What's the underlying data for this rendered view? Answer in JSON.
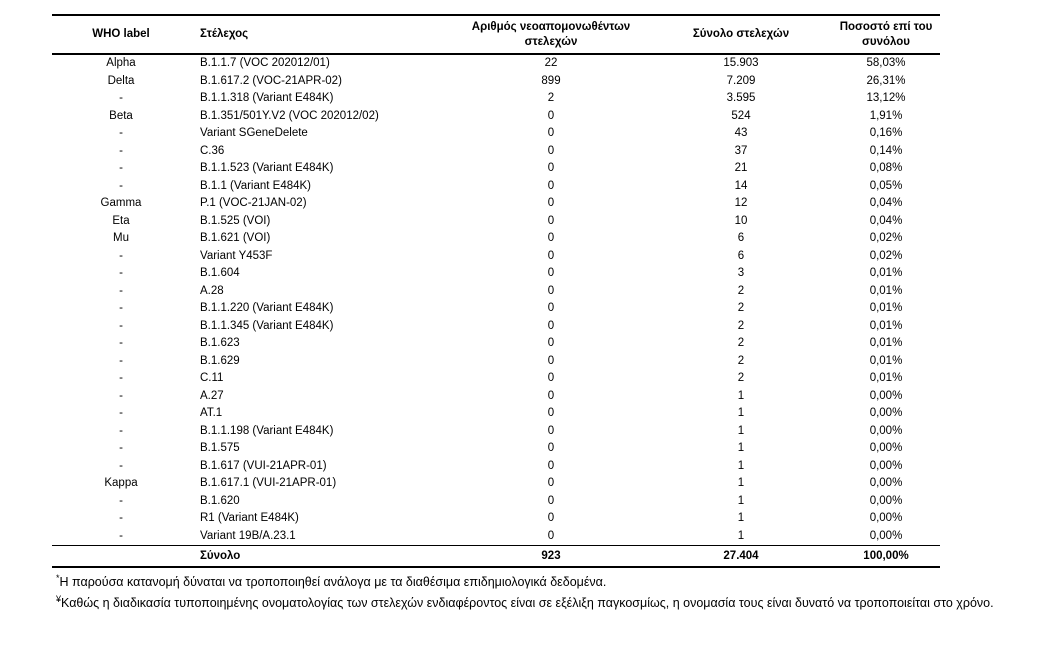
{
  "document": {
    "table": {
      "columns": [
        {
          "key": "who_label",
          "label": "WHO label"
        },
        {
          "key": "strain",
          "label": "Στέλεχος"
        },
        {
          "key": "new_isolates",
          "label": "Αριθμός νεοαπομονωθέντων στελεχών"
        },
        {
          "key": "total_strains",
          "label": "Σύνολο στελεχών"
        },
        {
          "key": "percent_of_total",
          "label": "Ποσοστό επί του συνόλου"
        }
      ],
      "rows": [
        [
          "Alpha",
          "B.1.1.7 (VOC 202012/01)",
          "22",
          "15.903",
          "58,03%"
        ],
        [
          "Delta",
          "B.1.617.2 (VOC-21APR-02)",
          "899",
          "7.209",
          "26,31%"
        ],
        [
          "-",
          "B.1.1.318 (Variant E484K)",
          "2",
          "3.595",
          "13,12%"
        ],
        [
          "Beta",
          "B.1.351/501Y.V2 (VOC 202012/02)",
          "0",
          "524",
          "1,91%"
        ],
        [
          "-",
          "Variant SGeneDelete",
          "0",
          "43",
          "0,16%"
        ],
        [
          "-",
          "C.36",
          "0",
          "37",
          "0,14%"
        ],
        [
          "-",
          "B.1.1.523 (Variant E484K)",
          "0",
          "21",
          "0,08%"
        ],
        [
          "-",
          "B.1.1 (Variant E484K)",
          "0",
          "14",
          "0,05%"
        ],
        [
          "Gamma",
          "P.1 (VOC-21JAN-02)",
          "0",
          "12",
          "0,04%"
        ],
        [
          "Eta",
          "B.1.525 (VOI)",
          "0",
          "10",
          "0,04%"
        ],
        [
          "Mu",
          "B.1.621 (VOI)",
          "0",
          "6",
          "0,02%"
        ],
        [
          "-",
          "Variant Y453F",
          "0",
          "6",
          "0,02%"
        ],
        [
          "-",
          "B.1.604",
          "0",
          "3",
          "0,01%"
        ],
        [
          "-",
          "A.28",
          "0",
          "2",
          "0,01%"
        ],
        [
          "-",
          "B.1.1.220 (Variant E484K)",
          "0",
          "2",
          "0,01%"
        ],
        [
          "-",
          "B.1.1.345 (Variant E484K)",
          "0",
          "2",
          "0,01%"
        ],
        [
          "-",
          "B.1.623",
          "0",
          "2",
          "0,01%"
        ],
        [
          "-",
          "B.1.629",
          "0",
          "2",
          "0,01%"
        ],
        [
          "-",
          "C.11",
          "0",
          "2",
          "0,01%"
        ],
        [
          "-",
          "A.27",
          "0",
          "1",
          "0,00%"
        ],
        [
          "-",
          "AT.1",
          "0",
          "1",
          "0,00%"
        ],
        [
          "-",
          "B.1.1.198 (Variant E484K)",
          "0",
          "1",
          "0,00%"
        ],
        [
          "-",
          "B.1.575",
          "0",
          "1",
          "0,00%"
        ],
        [
          "-",
          "B.1.617 (VUI-21APR-01)",
          "0",
          "1",
          "0,00%"
        ],
        [
          "Kappa",
          "B.1.617.1 (VUI-21APR-01)",
          "0",
          "1",
          "0,00%"
        ],
        [
          "-",
          "B.1.620",
          "0",
          "1",
          "0,00%"
        ],
        [
          "-",
          "R1 (Variant E484K)",
          "0",
          "1",
          "0,00%"
        ],
        [
          "-",
          "Variant 19B/A.23.1",
          "0",
          "1",
          "0,00%"
        ]
      ],
      "total_row": {
        "who_label": "",
        "label": "Σύνολο",
        "new_isolates": "923",
        "total_strains": "27.404",
        "percent_of_total": "100,00%"
      }
    },
    "footnotes": [
      {
        "marker": "*",
        "text": "Η παρούσα κατανομή δύναται να τροποποιηθεί ανάλογα με τα διαθέσιμα επιδημιολογικά δεδομένα."
      },
      {
        "marker": "¥",
        "text": "Καθώς η διαδικασία τυποποιημένης ονοματολογίας των στελεχών ενδιαφέροντος είναι σε εξέλιξη παγκοσμίως, η ονομασία τους είναι δυνατό να τροποποιείται στο χρόνο."
      }
    ],
    "colors": {
      "text": "#000000",
      "border": "#000000",
      "background": "#ffffff"
    }
  }
}
